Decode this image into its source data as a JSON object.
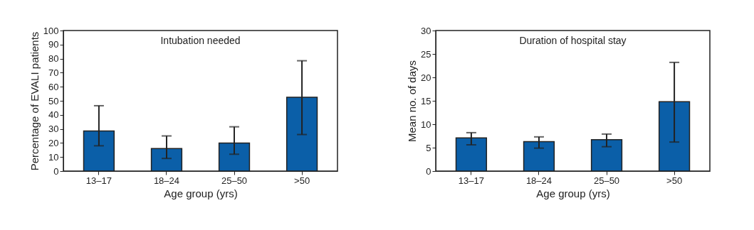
{
  "chart_data": [
    {
      "type": "bar",
      "title": "Intubation needed",
      "xlabel": "Age group (yrs)",
      "ylabel": "Percentage of EVALI patients",
      "categories": [
        "13–17",
        "18–24",
        "25–50",
        ">50"
      ],
      "values": [
        28.5,
        16,
        20,
        52.5
      ],
      "errors": [
        [
          18,
          46.5
        ],
        [
          9,
          25
        ],
        [
          12,
          31.5
        ],
        [
          26,
          78.5
        ]
      ],
      "color": "#0b5fa8",
      "ylim": [
        0,
        100
      ],
      "yticks": [
        0,
        10,
        20,
        30,
        40,
        50,
        60,
        70,
        80,
        90,
        100
      ],
      "grid": false,
      "legend": false
    },
    {
      "type": "bar",
      "title": "Duration of hospital stay",
      "xlabel": "Age group (yrs)",
      "ylabel": "Mean no. of days",
      "categories": [
        "13–17",
        "18–24",
        "25–50",
        ">50"
      ],
      "values": [
        7.1,
        6.3,
        6.7,
        14.8
      ],
      "errors": [
        [
          5.6,
          8.2
        ],
        [
          4.9,
          7.3
        ],
        [
          5.2,
          7.9
        ],
        [
          6.2,
          23.2
        ]
      ],
      "color": "#0b5fa8",
      "ylim": [
        0,
        30
      ],
      "yticks": [
        0,
        5,
        10,
        15,
        20,
        25,
        30
      ],
      "grid": false,
      "legend": false
    }
  ]
}
